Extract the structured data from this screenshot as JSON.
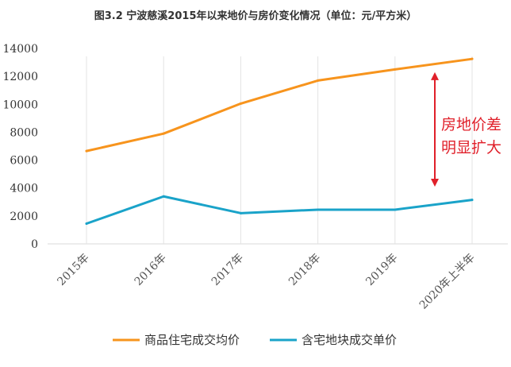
{
  "chart_data": {
    "type": "line",
    "title": "图3.2 宁波慈溪2015年以来地价与房价变化情况（单位：元/平方米）",
    "categories": [
      "2015年",
      "2016年",
      "2017年",
      "2018年",
      "2019年",
      "2020年上半年"
    ],
    "series": [
      {
        "name": "商品住宅成交均价",
        "values": [
          6650,
          7900,
          10050,
          11700,
          12500,
          13250
        ],
        "color": "#f7941d"
      },
      {
        "name": "含宅地块成交单价",
        "values": [
          1450,
          3400,
          2200,
          2450,
          2450,
          3150
        ],
        "color": "#1aa3c9"
      }
    ],
    "ylim": [
      0,
      14000
    ],
    "yticks": [
      "0",
      "2000",
      "4000",
      "6000",
      "8000",
      "10000",
      "12000",
      "14000"
    ],
    "grid": "vertical",
    "legend": "bottom",
    "annotation": {
      "lines": [
        "房地价差",
        "明显扩大"
      ],
      "color": "#e0202a",
      "arrow_from": 4100,
      "arrow_to": 12300
    }
  }
}
